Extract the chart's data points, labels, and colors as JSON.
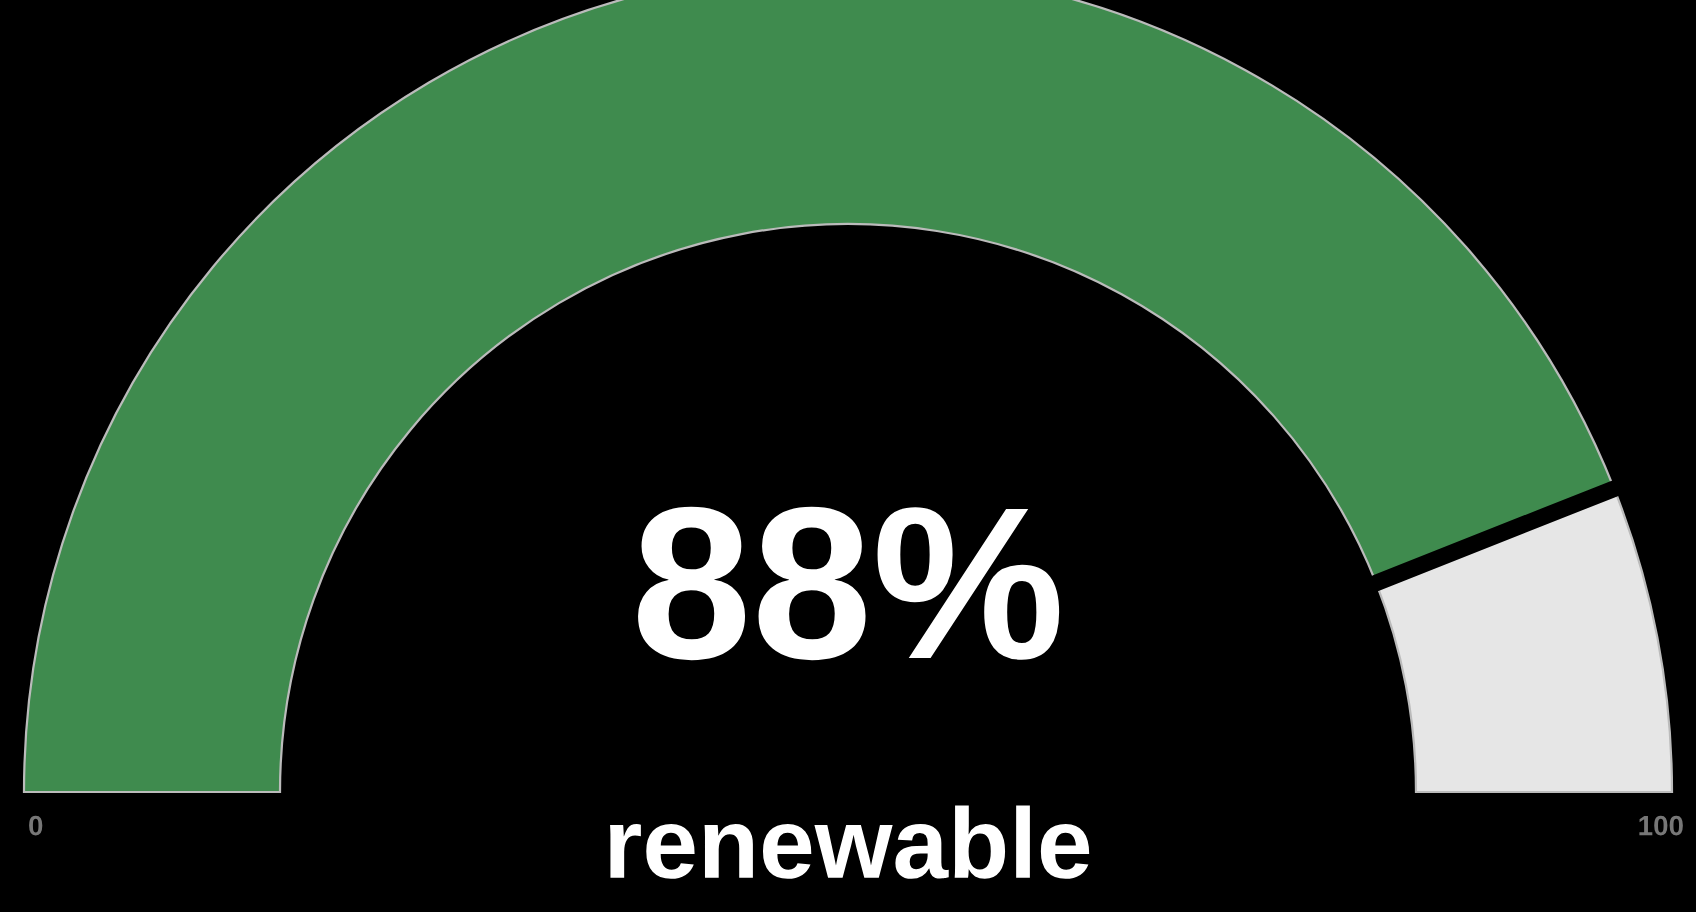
{
  "chart_data": {
    "type": "donut",
    "categories": [
      null,
      null
    ],
    "values": [
      88,
      12
    ],
    "colors": [
      "#3f8b4e",
      "#e6e6e6"
    ],
    "annotations": [
      "88%",
      "renewable",
      "0",
      "100"
    ]
  }
}
